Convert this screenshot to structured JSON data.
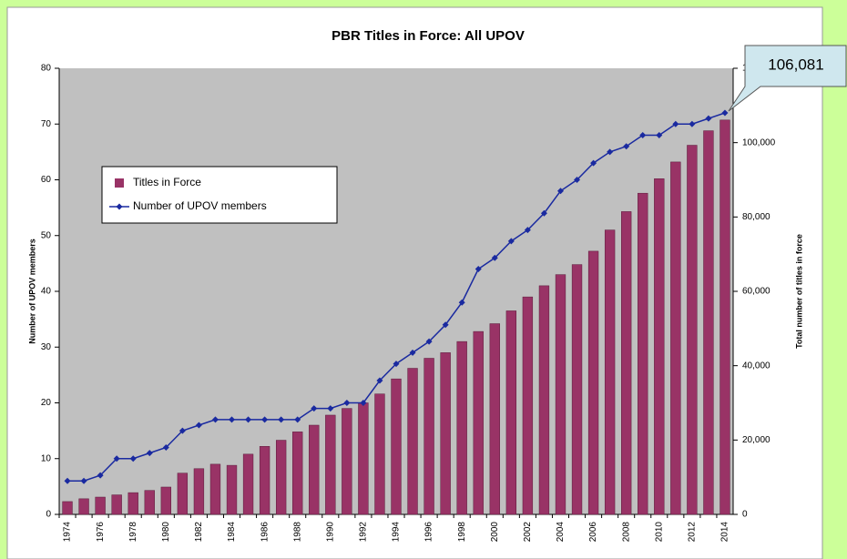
{
  "chart_data": {
    "type": "combo",
    "title": "PBR Titles in Force:  All UPOV",
    "y_label": "Number of UPOV members",
    "y2_label": "Total number of titles in force",
    "categories": [
      "1974",
      null,
      "1976",
      null,
      "1978",
      null,
      "1980",
      null,
      "1982",
      null,
      "1984",
      null,
      "1986",
      null,
      "1988",
      null,
      "1990",
      null,
      "1992",
      null,
      "1994",
      null,
      "1996",
      null,
      "1998",
      null,
      "2000",
      null,
      "2002",
      null,
      "2004",
      null,
      "2006",
      null,
      "2008",
      null,
      "2010",
      null,
      "2012",
      null,
      "2014"
    ],
    "series": [
      {
        "name": "Titles in Force",
        "type": "bar",
        "axis": "y2",
        "color": "#993366",
        "values": [
          3450,
          4200,
          4650,
          5250,
          5850,
          6450,
          7350,
          11100,
          12300,
          13500,
          13200,
          16200,
          18300,
          19950,
          22200,
          24000,
          26700,
          28500,
          30000,
          32400,
          36450,
          39300,
          42000,
          43500,
          46500,
          49200,
          51300,
          54750,
          58500,
          61500,
          64500,
          67200,
          70800,
          76500,
          81450,
          86400,
          90300,
          94800,
          99300,
          103200,
          106081
        ]
      },
      {
        "name": "Number of UPOV members",
        "type": "line",
        "axis": "y",
        "color": "#1a2aa0",
        "values": [
          6,
          6,
          7,
          10,
          10,
          11,
          12,
          15,
          16,
          17,
          17,
          17,
          17,
          17,
          17,
          19,
          19,
          20,
          20,
          24,
          27,
          29,
          31,
          34,
          38,
          44,
          46,
          49,
          51,
          54,
          58,
          60,
          63,
          65,
          66,
          68,
          68,
          70,
          70,
          71,
          72
        ]
      }
    ],
    "ylim": [
      0,
      80
    ],
    "yticks": [
      0,
      10,
      20,
      30,
      40,
      50,
      60,
      70,
      80
    ],
    "y2lim": [
      0,
      120000
    ],
    "y2ticks": [
      0,
      {
        "value": 20000,
        "label": "20,000"
      },
      {
        "value": 40000,
        "label": "40,000"
      },
      {
        "value": 60000,
        "label": "60,000"
      },
      {
        "value": 80000,
        "label": "80,000"
      },
      {
        "value": 100000,
        "label": "100,000"
      },
      {
        "value": 120000,
        "label": "120,000"
      }
    ],
    "annotations": [
      {
        "text": "106,081"
      }
    ],
    "legend": "upper left",
    "plot_color": "#c0c0c0"
  }
}
